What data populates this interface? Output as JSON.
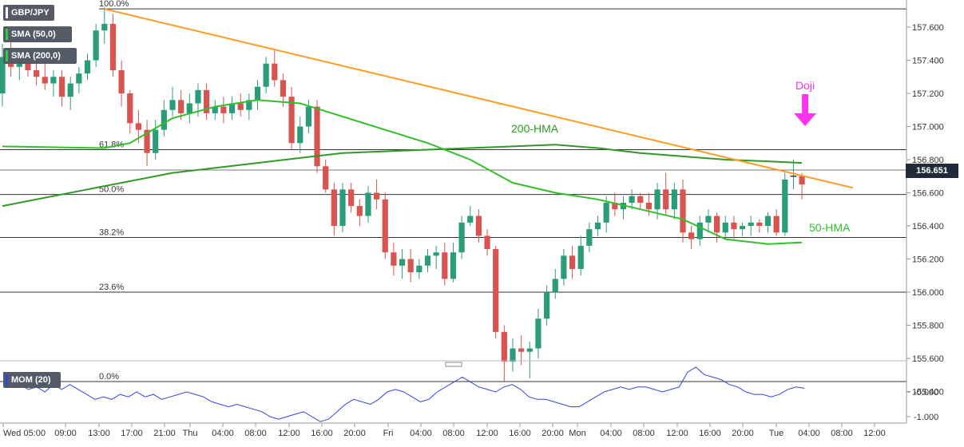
{
  "instrument": "GBP/JPY",
  "legend": [
    {
      "label": "SMA (50,0)",
      "color": "#2ecc40"
    },
    {
      "label": "SMA (200,0)",
      "color": "#2ecc40"
    }
  ],
  "last_price": "156.651",
  "colors": {
    "up": "#2a9d78",
    "down": "#d9534f",
    "hma50": "#31c02b",
    "hma200": "#2f9a25",
    "trendline": "#ff9a1f",
    "doji": "#ff33ee",
    "momentum": "#3344dd"
  },
  "annotations": {
    "doji": "Doji",
    "hma200": "200-HMA",
    "hma50": "50-HMA"
  },
  "chart_data": {
    "type": "candlestick",
    "y_axis": {
      "min": 155.4,
      "max": 157.7,
      "ticks": [
        "157.600",
        "157.400",
        "157.200",
        "157.000",
        "156.800",
        "156.600",
        "156.400",
        "156.200",
        "156.000",
        "155.800",
        "155.600",
        "155.400"
      ]
    },
    "x_ticks": [
      "Wed 05:00",
      "09:00",
      "13:00",
      "17:00",
      "21:00",
      "Thu",
      "04:00",
      "08:00",
      "12:00",
      "16:00",
      "20:00",
      "Fri",
      "04:00",
      "08:00",
      "12:00",
      "16:00",
      "20:00",
      "Mon",
      "04:00",
      "08:00",
      "12:00",
      "16:00",
      "20:00",
      "Tue",
      "04:00",
      "08:00",
      "12:00"
    ],
    "fibonacci": [
      {
        "label": "100.0%",
        "value": 157.71
      },
      {
        "label": "61.8%",
        "value": 156.86
      },
      {
        "label": "50.0%",
        "value": 156.59
      },
      {
        "label": "38.2%",
        "value": 156.33
      },
      {
        "label": "23.6%",
        "value": 156.0
      },
      {
        "label": "0.0%",
        "value": 155.46
      }
    ],
    "candles": [
      [
        157.2,
        157.5,
        157.12,
        157.42
      ],
      [
        157.42,
        157.52,
        157.3,
        157.36
      ],
      [
        157.36,
        157.46,
        157.28,
        157.38
      ],
      [
        157.38,
        157.44,
        157.3,
        157.34
      ],
      [
        157.34,
        157.4,
        157.25,
        157.3
      ],
      [
        157.3,
        157.38,
        157.22,
        157.26
      ],
      [
        157.26,
        157.34,
        157.18,
        157.3
      ],
      [
        157.3,
        157.34,
        157.12,
        157.18
      ],
      [
        157.18,
        157.3,
        157.1,
        157.26
      ],
      [
        157.26,
        157.36,
        157.2,
        157.32
      ],
      [
        157.32,
        157.44,
        157.28,
        157.4
      ],
      [
        157.4,
        157.62,
        157.36,
        157.58
      ],
      [
        157.58,
        157.72,
        157.5,
        157.62
      ],
      [
        157.62,
        157.68,
        157.3,
        157.34
      ],
      [
        157.34,
        157.4,
        157.12,
        157.2
      ],
      [
        157.2,
        157.22,
        156.96,
        157.02
      ],
      [
        157.02,
        157.1,
        156.9,
        156.98
      ],
      [
        156.98,
        157.04,
        156.76,
        156.84
      ],
      [
        156.84,
        157.04,
        156.8,
        156.98
      ],
      [
        156.98,
        157.16,
        156.94,
        157.1
      ],
      [
        157.1,
        157.24,
        157.06,
        157.16
      ],
      [
        157.16,
        157.22,
        157.04,
        157.08
      ],
      [
        157.08,
        157.2,
        157.02,
        157.14
      ],
      [
        157.14,
        157.26,
        157.06,
        157.22
      ],
      [
        157.22,
        157.26,
        157.04,
        157.08
      ],
      [
        157.08,
        157.16,
        157.04,
        157.12
      ],
      [
        157.12,
        157.18,
        157.02,
        157.08
      ],
      [
        157.08,
        157.18,
        157.04,
        157.14
      ],
      [
        157.14,
        157.2,
        157.06,
        157.1
      ],
      [
        157.1,
        157.2,
        157.04,
        157.16
      ],
      [
        157.16,
        157.28,
        157.1,
        157.24
      ],
      [
        157.24,
        157.42,
        157.2,
        157.38
      ],
      [
        157.38,
        157.46,
        157.24,
        157.28
      ],
      [
        157.28,
        157.32,
        157.12,
        157.18
      ],
      [
        157.18,
        157.24,
        156.86,
        156.9
      ],
      [
        156.9,
        157.06,
        156.84,
        157.0
      ],
      [
        157.0,
        157.16,
        156.96,
        157.12
      ],
      [
        157.12,
        157.16,
        156.72,
        156.76
      ],
      [
        156.76,
        156.8,
        156.6,
        156.62
      ],
      [
        156.62,
        156.66,
        156.34,
        156.4
      ],
      [
        156.4,
        156.66,
        156.36,
        156.62
      ],
      [
        156.62,
        156.66,
        156.48,
        156.52
      ],
      [
        156.52,
        156.56,
        156.4,
        156.46
      ],
      [
        156.46,
        156.64,
        156.42,
        156.6
      ],
      [
        156.6,
        156.68,
        156.5,
        156.56
      ],
      [
        156.56,
        156.6,
        156.2,
        156.24
      ],
      [
        156.24,
        156.3,
        156.1,
        156.16
      ],
      [
        156.16,
        156.26,
        156.08,
        156.2
      ],
      [
        156.2,
        156.26,
        156.06,
        156.12
      ],
      [
        156.12,
        156.2,
        156.08,
        156.16
      ],
      [
        156.16,
        156.26,
        156.12,
        156.22
      ],
      [
        156.22,
        156.28,
        156.14,
        156.24
      ],
      [
        156.24,
        156.3,
        156.04,
        156.08
      ],
      [
        156.08,
        156.3,
        156.06,
        156.24
      ],
      [
        156.24,
        156.46,
        156.2,
        156.42
      ],
      [
        156.42,
        156.52,
        156.4,
        156.46
      ],
      [
        156.46,
        156.5,
        156.3,
        156.34
      ],
      [
        156.34,
        156.38,
        156.22,
        156.26
      ],
      [
        156.26,
        156.28,
        155.72,
        155.76
      ],
      [
        155.76,
        155.8,
        155.46,
        155.58
      ],
      [
        155.58,
        155.72,
        155.52,
        155.66
      ],
      [
        155.66,
        155.74,
        155.56,
        155.64
      ],
      [
        155.64,
        155.7,
        155.48,
        155.66
      ],
      [
        155.66,
        155.9,
        155.6,
        155.84
      ],
      [
        155.84,
        156.04,
        155.8,
        156.0
      ],
      [
        156.0,
        156.14,
        155.96,
        156.08
      ],
      [
        156.08,
        156.26,
        156.04,
        156.22
      ],
      [
        156.22,
        156.28,
        156.08,
        156.14
      ],
      [
        156.14,
        156.34,
        156.1,
        156.28
      ],
      [
        156.28,
        156.42,
        156.24,
        156.38
      ],
      [
        156.38,
        156.46,
        156.34,
        156.42
      ],
      [
        156.42,
        156.58,
        156.36,
        156.54
      ],
      [
        156.54,
        156.6,
        156.46,
        156.5
      ],
      [
        156.5,
        156.58,
        156.44,
        156.54
      ],
      [
        156.54,
        156.62,
        156.5,
        156.58
      ],
      [
        156.58,
        156.6,
        156.5,
        156.54
      ],
      [
        156.54,
        156.6,
        156.46,
        156.5
      ],
      [
        156.5,
        156.66,
        156.44,
        156.62
      ],
      [
        156.62,
        156.72,
        156.46,
        156.5
      ],
      [
        156.5,
        156.66,
        156.44,
        156.62
      ],
      [
        156.62,
        156.68,
        156.3,
        156.36
      ],
      [
        156.36,
        156.4,
        156.26,
        156.32
      ],
      [
        156.32,
        156.46,
        156.28,
        156.42
      ],
      [
        156.42,
        156.5,
        156.36,
        156.46
      ],
      [
        156.46,
        156.48,
        156.3,
        156.36
      ],
      [
        156.36,
        156.46,
        156.32,
        156.42
      ],
      [
        156.42,
        156.46,
        156.32,
        156.38
      ],
      [
        156.38,
        156.42,
        156.34,
        156.4
      ],
      [
        156.4,
        156.46,
        156.34,
        156.42
      ],
      [
        156.42,
        156.44,
        156.36,
        156.4
      ],
      [
        156.4,
        156.48,
        156.36,
        156.46
      ],
      [
        156.46,
        156.5,
        156.34,
        156.36
      ],
      [
        156.36,
        156.72,
        156.34,
        156.68
      ],
      [
        156.7,
        156.8,
        156.62,
        156.7
      ],
      [
        156.7,
        156.72,
        156.56,
        156.65
      ]
    ],
    "hma50": [
      [
        0,
        156.88
      ],
      [
        12,
        156.87
      ],
      [
        15,
        156.9
      ],
      [
        20,
        157.05
      ],
      [
        25,
        157.12
      ],
      [
        30,
        157.16
      ],
      [
        35,
        157.14
      ],
      [
        40,
        157.06
      ],
      [
        45,
        156.98
      ],
      [
        50,
        156.9
      ],
      [
        55,
        156.8
      ],
      [
        60,
        156.66
      ],
      [
        65,
        156.6
      ],
      [
        70,
        156.56
      ],
      [
        75,
        156.5
      ],
      [
        80,
        156.44
      ],
      [
        85,
        156.32
      ],
      [
        90,
        156.29
      ],
      [
        94,
        156.3
      ]
    ],
    "hma200": [
      [
        0,
        156.52
      ],
      [
        10,
        156.62
      ],
      [
        20,
        156.72
      ],
      [
        30,
        156.78
      ],
      [
        40,
        156.84
      ],
      [
        50,
        156.86
      ],
      [
        60,
        156.88
      ],
      [
        65,
        156.89
      ],
      [
        70,
        156.87
      ],
      [
        75,
        156.84
      ],
      [
        80,
        156.82
      ],
      [
        85,
        156.8
      ],
      [
        90,
        156.79
      ],
      [
        94,
        156.78
      ]
    ],
    "trendline": [
      [
        12,
        157.71
      ],
      [
        100,
        156.63
      ]
    ],
    "doji_index": 94,
    "momentum": {
      "label": "MOM (20)",
      "y_ticks": [
        "-0.000",
        "-1.000"
      ],
      "values": [
        0.8,
        0.6,
        0.3,
        0.1,
        0.2,
        0.0,
        0.3,
        0.1,
        0.3,
        0.1,
        -0.1,
        -0.3,
        -0.2,
        -0.3,
        -0.1,
        -0.2,
        0.0,
        -0.2,
        -0.1,
        -0.3,
        -0.2,
        -0.1,
        0.0,
        -0.1,
        -0.2,
        -0.4,
        -0.5,
        -0.6,
        -0.5,
        -0.6,
        -0.7,
        -0.8,
        -1.0,
        -1.1,
        -1.0,
        -0.9,
        -0.8,
        -1.0,
        -1.2,
        -1.1,
        -0.8,
        -0.5,
        -0.3,
        -0.4,
        -0.5,
        -0.3,
        0.0,
        0.1,
        0.0,
        -0.2,
        -0.4,
        -0.3,
        0.0,
        0.2,
        0.4,
        0.6,
        0.4,
        0.2,
        0.1,
        0.0,
        0.2,
        0.3,
        0.1,
        -0.2,
        -0.3,
        -0.3,
        -0.4,
        -0.5,
        -0.6,
        -0.6,
        -0.4,
        -0.2,
        0.0,
        0.1,
        0.2,
        0.1,
        0.2,
        0.2,
        0.1,
        0.0,
        0.1,
        0.2,
        0.8,
        1.0,
        0.7,
        0.6,
        0.5,
        0.3,
        0.2,
        0.0,
        -0.1,
        -0.1,
        -0.2,
        -0.1,
        0.1,
        0.2,
        0.15
      ]
    }
  }
}
